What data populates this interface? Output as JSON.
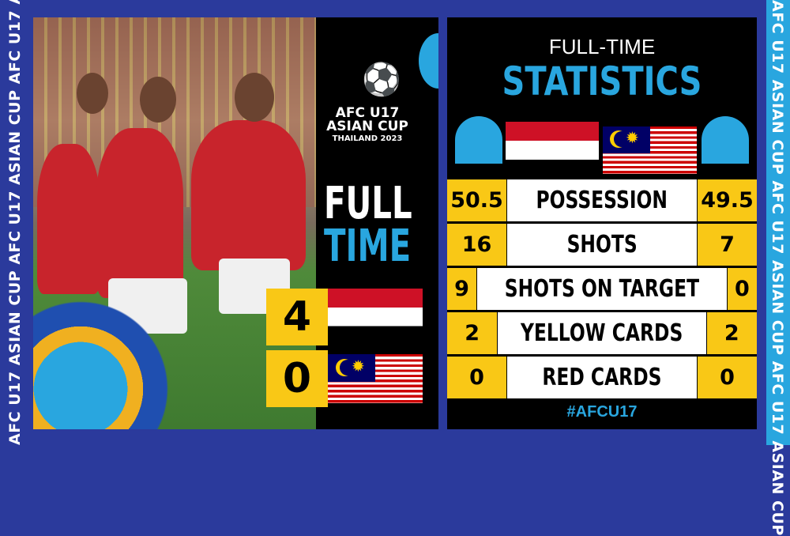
{
  "branding": {
    "side_text": "AFC U17 ASIAN CUP AFC U17 ASIAN CUP AFC U17 ASIAN CUP",
    "logo_line1": "AFC U17",
    "logo_line2": "ASIAN CUP",
    "logo_line3": "THAILAND 2023",
    "hashtag": "#AFCU17"
  },
  "result": {
    "title_line1": "FULL",
    "title_line2": "TIME",
    "home_score": "4",
    "away_score": "0",
    "home_flag": "yemen-flag",
    "away_flag": "malaysia-flag"
  },
  "stats": {
    "heading_small": "FULL-TIME",
    "heading_large": "STATISTICS",
    "home_flag": "red-white-flag",
    "away_flag": "malaysia-flag",
    "rows": [
      {
        "home": "50.5",
        "label": "POSSESSION",
        "away": "49.5"
      },
      {
        "home": "16",
        "label": "SHOTS",
        "away": "7"
      },
      {
        "home": "9",
        "label": "SHOTS ON TARGET",
        "away": "0"
      },
      {
        "home": "2",
        "label": "YELLOW CARDS",
        "away": "2"
      },
      {
        "home": "0",
        "label": "RED CARDS",
        "away": "0"
      }
    ]
  },
  "colors": {
    "accent_blue": "#29a6df",
    "yellow": "#f9c816",
    "navy": "#2b3a9c"
  }
}
